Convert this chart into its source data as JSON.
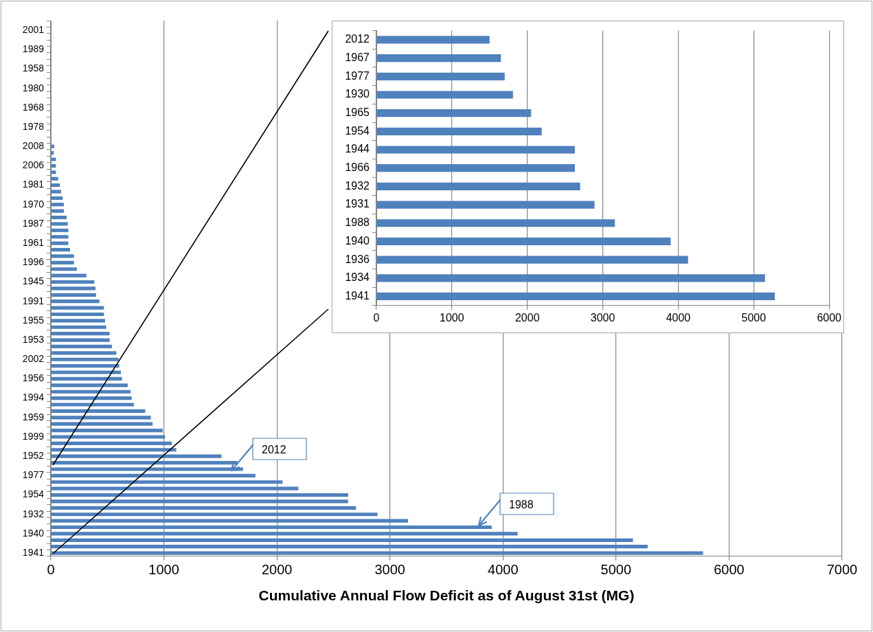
{
  "chart_data": [
    {
      "type": "bar",
      "orientation": "horizontal",
      "xlabel": "Cumulative Annual Flow Deficit as of August 31st (MG)",
      "categories": [
        null,
        "2001",
        null,
        null,
        "1989",
        null,
        null,
        "1958",
        null,
        null,
        "1980",
        null,
        null,
        "1968",
        null,
        null,
        "1978",
        null,
        null,
        "2008",
        null,
        null,
        "2006",
        null,
        null,
        "1981",
        null,
        null,
        "1970",
        null,
        null,
        "1987",
        null,
        null,
        "1961",
        null,
        null,
        "1996",
        null,
        null,
        "1945",
        null,
        null,
        "1991",
        null,
        null,
        "1955",
        null,
        null,
        "1953",
        null,
        null,
        "2002",
        null,
        null,
        "1956",
        null,
        null,
        "1994",
        null,
        null,
        "1959",
        null,
        null,
        "1999",
        null,
        null,
        "1952",
        null,
        null,
        "1977",
        null,
        null,
        "1954",
        null,
        null,
        "1932",
        null,
        null,
        "1940",
        null,
        null,
        "1941"
      ],
      "values": [
        0,
        0,
        0,
        0,
        0,
        0,
        0,
        0,
        0,
        0,
        0,
        0,
        0,
        0,
        0,
        null,
        null,
        null,
        null,
        30,
        25,
        45,
        45,
        45,
        65,
        80,
        90,
        105,
        115,
        115,
        140,
        150,
        155,
        155,
        155,
        170,
        205,
        205,
        230,
        315,
        385,
        395,
        400,
        430,
        470,
        470,
        480,
        490,
        520,
        520,
        540,
        580,
        600,
        605,
        620,
        630,
        680,
        705,
        715,
        735,
        835,
        885,
        900,
        990,
        1010,
        1070,
        1110,
        1510,
        1650,
        1700,
        1810,
        2050,
        2190,
        2630,
        2630,
        2700,
        2890,
        3160,
        3900,
        4130,
        5150,
        5280,
        5770
      ],
      "color": "#4f81bd",
      "xlim": [
        0,
        7000
      ],
      "xticks": [
        0,
        1000,
        2000,
        3000,
        4000,
        5000,
        6000,
        7000
      ],
      "grid": "x",
      "annotations": [
        "2012",
        "1988"
      ]
    },
    {
      "type": "bar",
      "orientation": "horizontal",
      "categories": [
        "2012",
        "1967",
        "1977",
        "1930",
        "1965",
        "1954",
        "1944",
        "1966",
        "1932",
        "1931",
        "1988",
        "1940",
        "1936",
        "1934",
        "1941"
      ],
      "values": [
        1500,
        1650,
        1700,
        1810,
        2050,
        2190,
        2630,
        2630,
        2700,
        2890,
        3160,
        3900,
        4130,
        5150,
        5280
      ],
      "color": "#4f81bd",
      "xlim": [
        0,
        6000
      ],
      "xticks": [
        0,
        1000,
        2000,
        3000,
        4000,
        5000,
        6000
      ],
      "grid": "x"
    }
  ]
}
